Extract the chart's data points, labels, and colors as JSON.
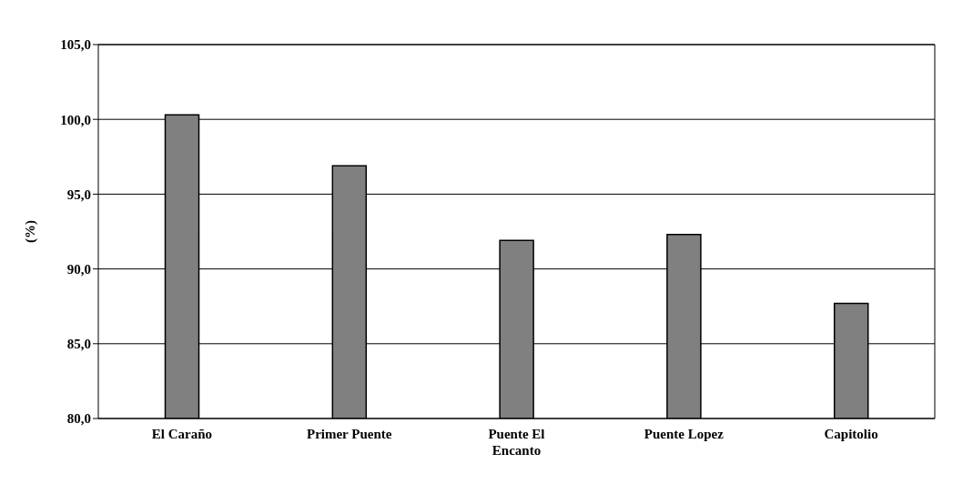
{
  "chart_data": {
    "type": "bar",
    "ylabel": "(%)",
    "categories": [
      "El Caraño",
      "Primer Puente",
      "Puente El Encanto",
      "Puente Lopez",
      "Capitolio"
    ],
    "values": [
      100.3,
      96.9,
      91.9,
      92.3,
      87.7
    ],
    "color": "#808080",
    "ylim": [
      80,
      105
    ],
    "yticks": [
      {
        "value": 80,
        "label": "80,0"
      },
      {
        "value": 85,
        "label": "85,0"
      },
      {
        "value": 90,
        "label": "90,0"
      },
      {
        "value": 95,
        "label": "95,0"
      },
      {
        "value": 100,
        "label": "100,0"
      },
      {
        "value": 105,
        "label": "105,0"
      }
    ],
    "grid": "y",
    "legend": false
  }
}
